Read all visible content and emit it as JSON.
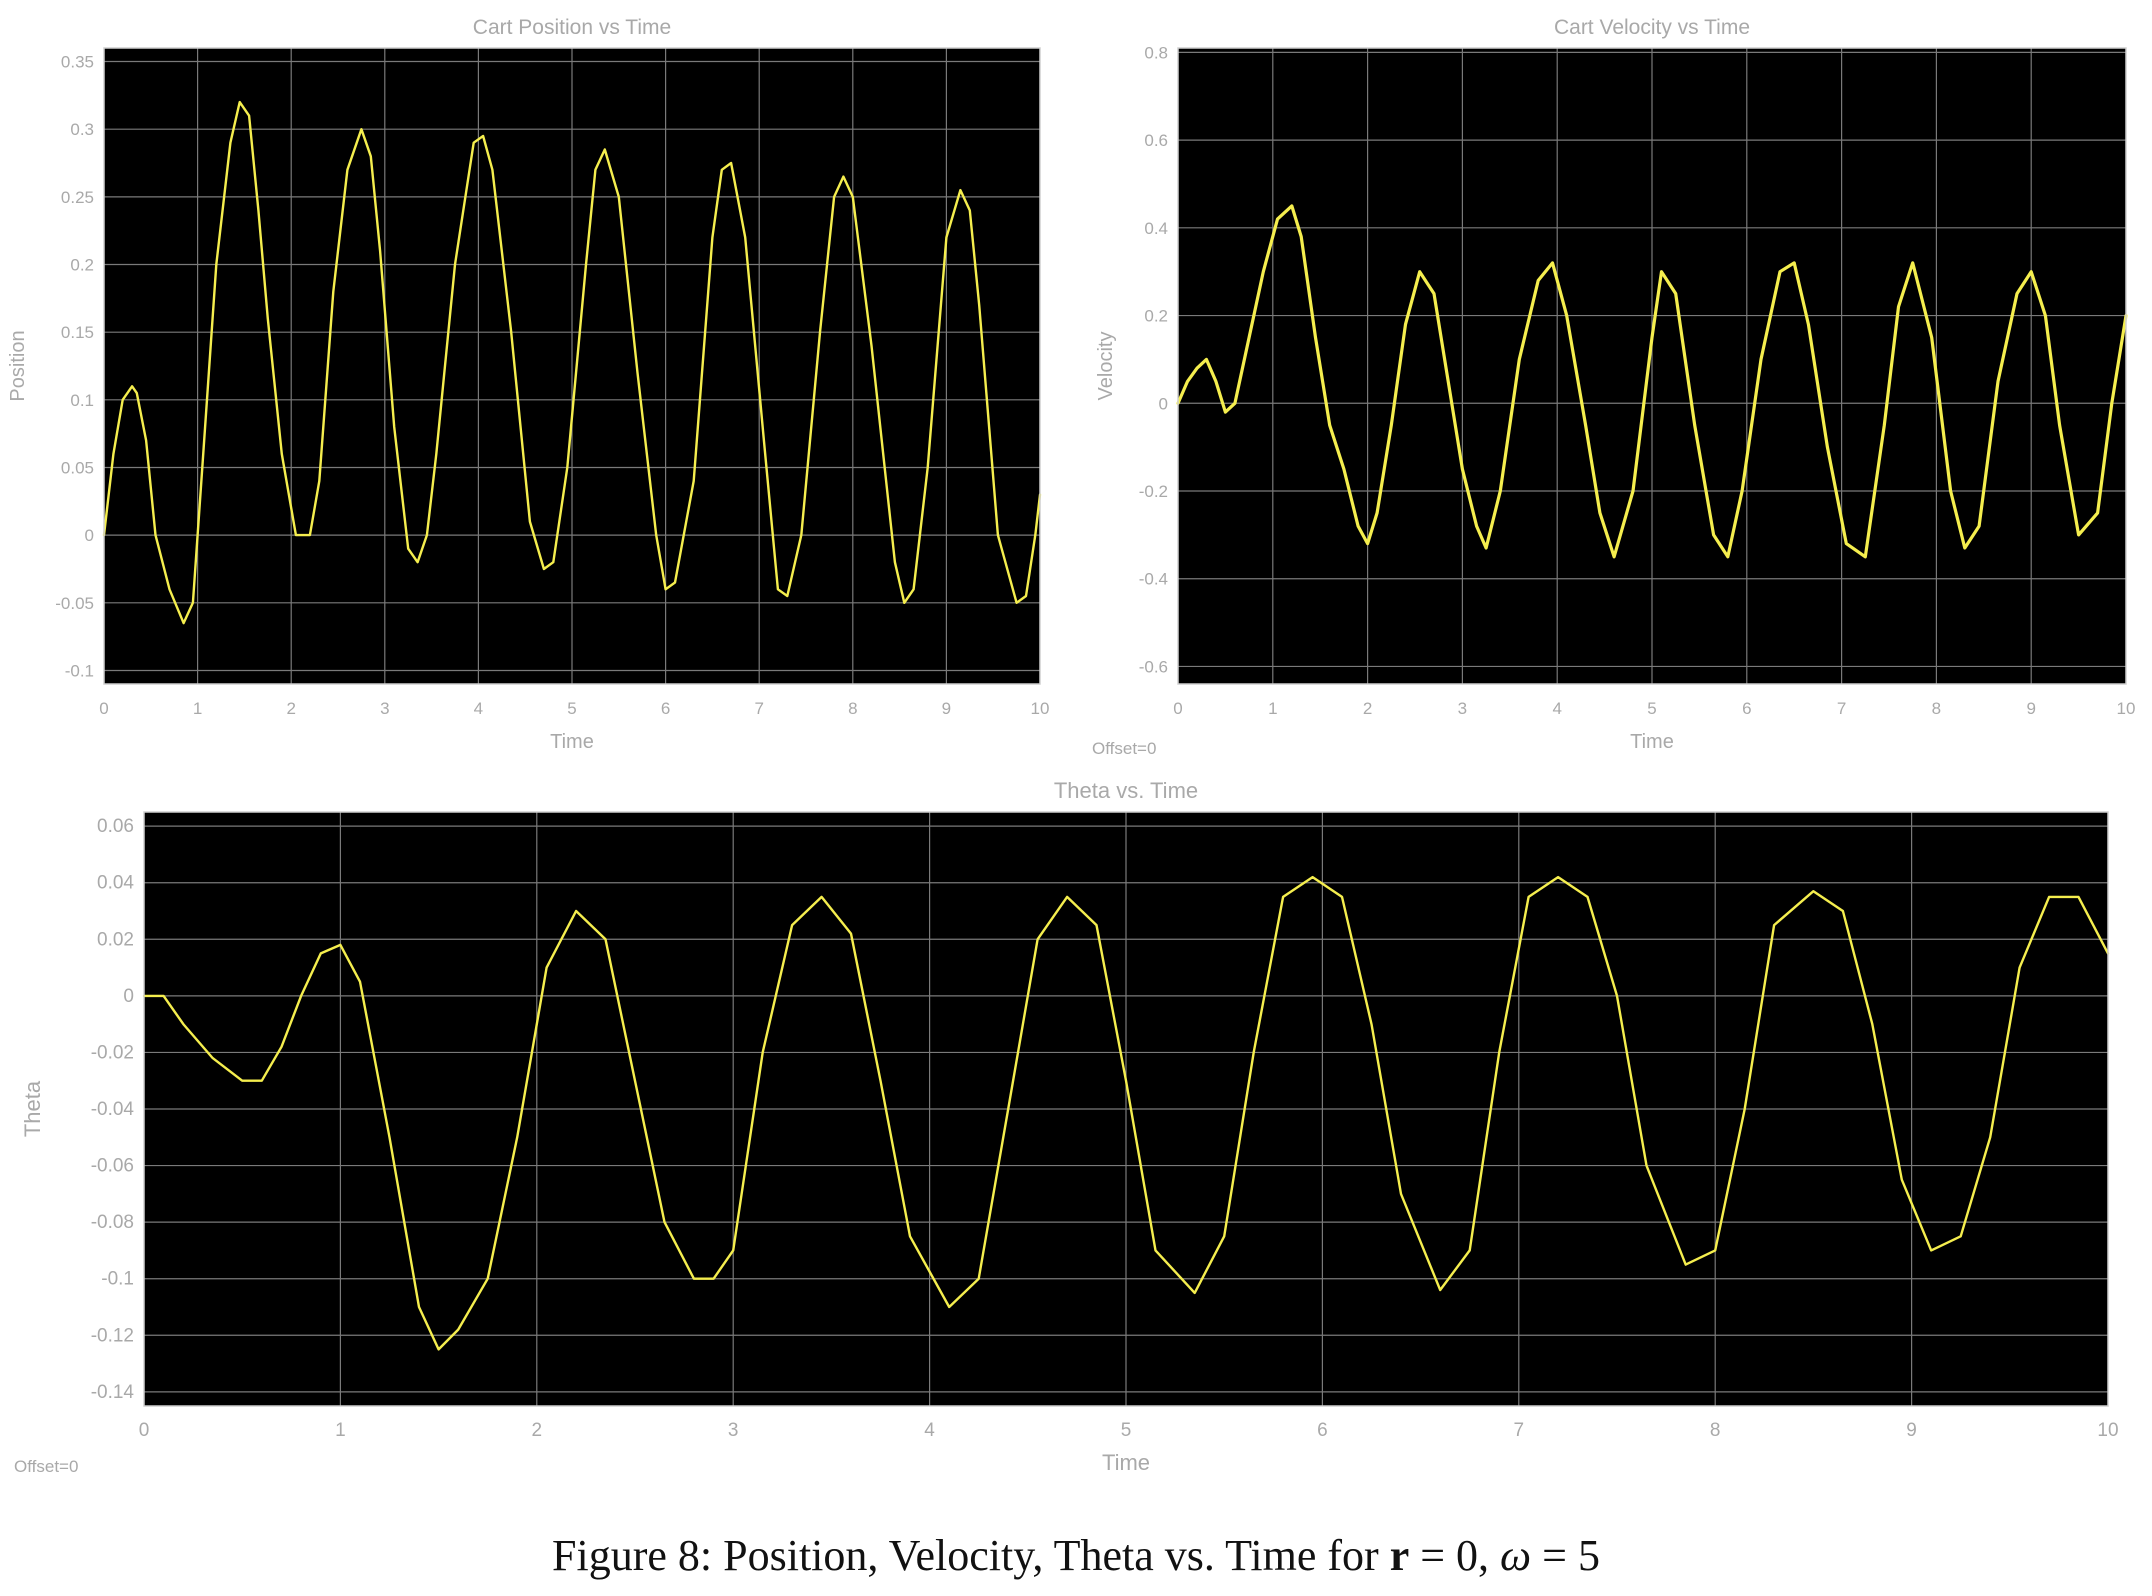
{
  "colors": {
    "background": "#ffffff",
    "plot_bg": "#000000",
    "grid": "#7a7a7a",
    "line": "#f5ee4e",
    "text": "#a9a9a9"
  },
  "chart_data": [
    {
      "id": "position",
      "type": "line",
      "title": "Cart Position vs Time",
      "xlabel": "Time",
      "ylabel": "Position",
      "xlim": [
        0,
        10
      ],
      "ylim": [
        -0.11,
        0.36
      ],
      "xticks": [
        0,
        1,
        2,
        3,
        4,
        5,
        6,
        7,
        8,
        9,
        10
      ],
      "yticks": [
        -0.1,
        -0.05,
        0,
        0.05,
        0.1,
        0.15,
        0.2,
        0.25,
        0.3,
        0.35
      ],
      "grid": true,
      "offset_label": "",
      "series": [
        {
          "x": [
            0,
            0.1,
            0.2,
            0.3,
            0.35,
            0.45,
            0.55,
            0.7,
            0.85,
            0.95,
            1.05,
            1.2,
            1.35,
            1.45,
            1.55,
            1.65,
            1.75,
            1.9,
            2.05,
            2.2,
            2.3,
            2.45,
            2.6,
            2.75,
            2.85,
            2.95,
            3.1,
            3.25,
            3.35,
            3.45,
            3.55,
            3.75,
            3.95,
            4.05,
            4.15,
            4.35,
            4.55,
            4.7,
            4.8,
            4.95,
            5.15,
            5.25,
            5.35,
            5.5,
            5.7,
            5.9,
            6.0,
            6.1,
            6.3,
            6.5,
            6.6,
            6.7,
            6.85,
            7.05,
            7.2,
            7.3,
            7.45,
            7.65,
            7.8,
            7.9,
            8.0,
            8.2,
            8.45,
            8.55,
            8.65,
            8.8,
            9.0,
            9.15,
            9.25,
            9.35,
            9.55,
            9.75,
            9.85,
            9.95,
            10
          ],
          "y": [
            0.0,
            0.06,
            0.1,
            0.11,
            0.105,
            0.07,
            0.0,
            -0.04,
            -0.065,
            -0.05,
            0.05,
            0.2,
            0.29,
            0.32,
            0.31,
            0.24,
            0.16,
            0.06,
            0.0,
            0.0,
            0.04,
            0.18,
            0.27,
            0.3,
            0.28,
            0.21,
            0.08,
            -0.01,
            -0.02,
            0.0,
            0.06,
            0.2,
            0.29,
            0.295,
            0.27,
            0.15,
            0.01,
            -0.025,
            -0.02,
            0.05,
            0.2,
            0.27,
            0.285,
            0.25,
            0.12,
            0.0,
            -0.04,
            -0.035,
            0.04,
            0.22,
            0.27,
            0.275,
            0.22,
            0.07,
            -0.04,
            -0.045,
            0.0,
            0.15,
            0.25,
            0.265,
            0.25,
            0.14,
            -0.02,
            -0.05,
            -0.04,
            0.05,
            0.22,
            0.255,
            0.24,
            0.17,
            0.0,
            -0.05,
            -0.045,
            0.0,
            0.03
          ]
        }
      ]
    },
    {
      "id": "velocity",
      "type": "line",
      "title": "Cart Velocity vs Time",
      "xlabel": "Time",
      "ylabel": "Velocity",
      "xlim": [
        0,
        10
      ],
      "ylim": [
        -0.64,
        0.81
      ],
      "xticks": [
        0,
        1,
        2,
        3,
        4,
        5,
        6,
        7,
        8,
        9,
        10
      ],
      "yticks": [
        -0.6,
        -0.4,
        -0.2,
        0,
        0.2,
        0.4,
        0.6,
        0.8
      ],
      "grid": true,
      "offset_label": "Offset=0",
      "series": [
        {
          "x": [
            0,
            0.1,
            0.2,
            0.3,
            0.4,
            0.5,
            0.6,
            0.75,
            0.9,
            1.05,
            1.2,
            1.3,
            1.45,
            1.6,
            1.75,
            1.9,
            2.0,
            2.1,
            2.25,
            2.4,
            2.55,
            2.7,
            2.85,
            3.0,
            3.15,
            3.25,
            3.4,
            3.6,
            3.8,
            3.95,
            4.1,
            4.3,
            4.45,
            4.6,
            4.8,
            5.0,
            5.1,
            5.25,
            5.45,
            5.65,
            5.8,
            5.95,
            6.15,
            6.35,
            6.5,
            6.65,
            6.85,
            7.05,
            7.25,
            7.45,
            7.6,
            7.75,
            7.95,
            8.15,
            8.3,
            8.45,
            8.65,
            8.85,
            9.0,
            9.15,
            9.3,
            9.5,
            9.7,
            9.85,
            10
          ],
          "y": [
            0.0,
            0.05,
            0.08,
            0.1,
            0.05,
            -0.02,
            0.0,
            0.15,
            0.3,
            0.42,
            0.45,
            0.38,
            0.15,
            -0.05,
            -0.15,
            -0.28,
            -0.32,
            -0.25,
            -0.05,
            0.18,
            0.3,
            0.25,
            0.05,
            -0.15,
            -0.28,
            -0.33,
            -0.2,
            0.1,
            0.28,
            0.32,
            0.2,
            -0.05,
            -0.25,
            -0.35,
            -0.2,
            0.15,
            0.3,
            0.25,
            -0.05,
            -0.3,
            -0.35,
            -0.2,
            0.1,
            0.3,
            0.32,
            0.18,
            -0.1,
            -0.32,
            -0.35,
            -0.05,
            0.22,
            0.32,
            0.15,
            -0.2,
            -0.33,
            -0.28,
            0.05,
            0.25,
            0.3,
            0.2,
            -0.05,
            -0.3,
            -0.25,
            0.0,
            0.2
          ]
        }
      ]
    },
    {
      "id": "theta",
      "type": "line",
      "title": "Theta vs. Time",
      "xlabel": "Time",
      "ylabel": "Theta",
      "xlim": [
        0,
        10
      ],
      "ylim": [
        -0.145,
        0.065
      ],
      "xticks": [
        0,
        1,
        2,
        3,
        4,
        5,
        6,
        7,
        8,
        9,
        10
      ],
      "yticks": [
        -0.14,
        -0.12,
        -0.1,
        -0.08,
        -0.06,
        -0.04,
        -0.02,
        0,
        0.02,
        0.04,
        0.06
      ],
      "grid": true,
      "offset_label": "Offset=0",
      "series": [
        {
          "x": [
            0,
            0.1,
            0.2,
            0.35,
            0.5,
            0.6,
            0.7,
            0.8,
            0.9,
            1.0,
            1.1,
            1.25,
            1.4,
            1.5,
            1.6,
            1.75,
            1.9,
            2.05,
            2.2,
            2.35,
            2.5,
            2.65,
            2.8,
            2.9,
            3.0,
            3.15,
            3.3,
            3.45,
            3.6,
            3.75,
            3.9,
            4.1,
            4.25,
            4.4,
            4.55,
            4.7,
            4.85,
            5.0,
            5.15,
            5.35,
            5.5,
            5.65,
            5.8,
            5.95,
            6.1,
            6.25,
            6.4,
            6.6,
            6.75,
            6.9,
            7.05,
            7.2,
            7.35,
            7.5,
            7.65,
            7.85,
            8.0,
            8.15,
            8.3,
            8.5,
            8.65,
            8.8,
            8.95,
            9.1,
            9.25,
            9.4,
            9.55,
            9.7,
            9.85,
            10
          ],
          "y": [
            0.0,
            0.0,
            -0.01,
            -0.022,
            -0.03,
            -0.03,
            -0.018,
            0.0,
            0.015,
            0.018,
            0.005,
            -0.05,
            -0.11,
            -0.125,
            -0.118,
            -0.1,
            -0.05,
            0.01,
            0.03,
            0.02,
            -0.03,
            -0.08,
            -0.1,
            -0.1,
            -0.09,
            -0.02,
            0.025,
            0.035,
            0.022,
            -0.03,
            -0.085,
            -0.11,
            -0.1,
            -0.04,
            0.02,
            0.035,
            0.025,
            -0.03,
            -0.09,
            -0.105,
            -0.085,
            -0.02,
            0.035,
            0.042,
            0.035,
            -0.01,
            -0.07,
            -0.104,
            -0.09,
            -0.02,
            0.035,
            0.042,
            0.035,
            0.0,
            -0.06,
            -0.095,
            -0.09,
            -0.04,
            0.025,
            0.037,
            0.03,
            -0.01,
            -0.065,
            -0.09,
            -0.085,
            -0.05,
            0.01,
            0.035,
            0.035,
            0.015
          ]
        }
      ]
    }
  ],
  "caption": {
    "prefix": "Figure 8: Position, Velocity, Theta vs. Time for ",
    "r_symbol": "r",
    "r_value": " = 0, ",
    "omega_symbol": "ω",
    "omega_value": " = 5"
  }
}
